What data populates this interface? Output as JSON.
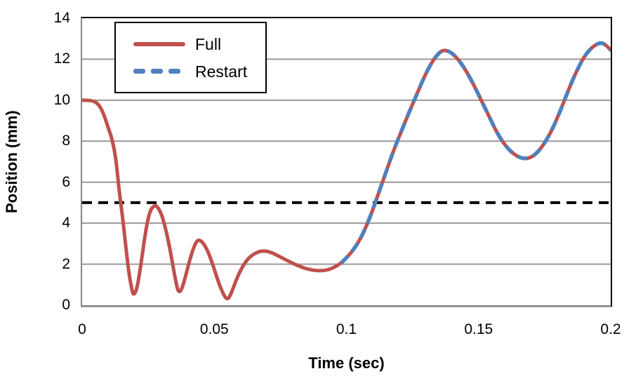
{
  "figure": {
    "background": "#ffffff",
    "plot_border_color": "#000000",
    "axis_line_color": "#848484",
    "gridline_color": "#999999",
    "text_color": "#000000"
  },
  "legend": {
    "position": "top-left-inside",
    "border_color": "#000000",
    "items": [
      {
        "label": "Full",
        "style": "solid"
      },
      {
        "label": "Restart",
        "style": "dashed"
      }
    ]
  },
  "chart_data": {
    "type": "line",
    "title": "",
    "xlabel": "Time (sec)",
    "ylabel": "Position (mm)",
    "xlim": [
      0,
      0.2
    ],
    "ylim": [
      0,
      14
    ],
    "xticks": [
      0,
      0.05,
      0.1,
      0.15,
      0.2
    ],
    "xtick_labels": [
      "0",
      "0.05",
      "0.1",
      "0.15",
      "0.2"
    ],
    "yticks": [
      0,
      2,
      4,
      6,
      8,
      10,
      12,
      14
    ],
    "ytick_labels": [
      "0",
      "2",
      "4",
      "6",
      "8",
      "10",
      "12",
      "14"
    ],
    "grid": true,
    "gridline_y_values": [
      2,
      4,
      6,
      8,
      10,
      12
    ],
    "legend_position": "top-left-inside",
    "reference_line": {
      "y": 5,
      "color": "#000000",
      "style": "dashed",
      "dash": [
        14,
        9
      ],
      "stroke_width": 4
    },
    "series": [
      {
        "name": "Full",
        "color": "#C0504D",
        "style": "solid",
        "stroke_width": 5,
        "points": [
          [
            0,
            10
          ],
          [
            0.002,
            10
          ],
          [
            0.004,
            9.97
          ],
          [
            0.006,
            9.84
          ],
          [
            0.008,
            9.4
          ],
          [
            0.01,
            8.6
          ],
          [
            0.011,
            8.25
          ],
          [
            0.012,
            7.7
          ],
          [
            0.013,
            6.9
          ],
          [
            0.014,
            5.6
          ],
          [
            0.015,
            4.6
          ],
          [
            0.016,
            3.5
          ],
          [
            0.017,
            2.3
          ],
          [
            0.018,
            1.3
          ],
          [
            0.019,
            0.65
          ],
          [
            0.0195,
            0.5
          ],
          [
            0.0205,
            0.7
          ],
          [
            0.0215,
            1.35
          ],
          [
            0.0225,
            2.2
          ],
          [
            0.0235,
            3.15
          ],
          [
            0.0245,
            3.95
          ],
          [
            0.0255,
            4.5
          ],
          [
            0.0265,
            4.78
          ],
          [
            0.028,
            4.88
          ],
          [
            0.0295,
            4.6
          ],
          [
            0.031,
            4.05
          ],
          [
            0.0325,
            3.2
          ],
          [
            0.034,
            2.2
          ],
          [
            0.035,
            1.45
          ],
          [
            0.036,
            0.8
          ],
          [
            0.0368,
            0.62
          ],
          [
            0.0378,
            0.8
          ],
          [
            0.039,
            1.35
          ],
          [
            0.0405,
            2.1
          ],
          [
            0.042,
            2.75
          ],
          [
            0.0435,
            3.18
          ],
          [
            0.045,
            3.15
          ],
          [
            0.0465,
            2.9
          ],
          [
            0.048,
            2.5
          ],
          [
            0.0495,
            1.95
          ],
          [
            0.051,
            1.35
          ],
          [
            0.0525,
            0.8
          ],
          [
            0.054,
            0.4
          ],
          [
            0.055,
            0.28
          ],
          [
            0.056,
            0.45
          ],
          [
            0.0575,
            0.95
          ],
          [
            0.059,
            1.45
          ],
          [
            0.061,
            1.95
          ],
          [
            0.063,
            2.3
          ],
          [
            0.065,
            2.5
          ],
          [
            0.067,
            2.62
          ],
          [
            0.069,
            2.65
          ],
          [
            0.071,
            2.6
          ],
          [
            0.0735,
            2.45
          ],
          [
            0.0765,
            2.25
          ],
          [
            0.0795,
            2.05
          ],
          [
            0.0825,
            1.88
          ],
          [
            0.0855,
            1.75
          ],
          [
            0.0885,
            1.68
          ],
          [
            0.0915,
            1.68
          ],
          [
            0.0945,
            1.78
          ],
          [
            0.098,
            2.05
          ],
          [
            0.1,
            2.3
          ],
          [
            0.103,
            2.75
          ],
          [
            0.106,
            3.4
          ],
          [
            0.109,
            4.3
          ],
          [
            0.112,
            5.4
          ],
          [
            0.115,
            6.5
          ],
          [
            0.118,
            7.6
          ],
          [
            0.121,
            8.55
          ],
          [
            0.124,
            9.5
          ],
          [
            0.127,
            10.4
          ],
          [
            0.13,
            11.3
          ],
          [
            0.133,
            12.0
          ],
          [
            0.136,
            12.45
          ],
          [
            0.139,
            12.4
          ],
          [
            0.142,
            12.05
          ],
          [
            0.145,
            11.5
          ],
          [
            0.148,
            10.8
          ],
          [
            0.151,
            10.0
          ],
          [
            0.154,
            9.2
          ],
          [
            0.157,
            8.4
          ],
          [
            0.16,
            7.8
          ],
          [
            0.163,
            7.4
          ],
          [
            0.166,
            7.17
          ],
          [
            0.169,
            7.15
          ],
          [
            0.172,
            7.4
          ],
          [
            0.175,
            7.9
          ],
          [
            0.178,
            8.6
          ],
          [
            0.181,
            9.5
          ],
          [
            0.184,
            10.5
          ],
          [
            0.187,
            11.4
          ],
          [
            0.19,
            12.15
          ],
          [
            0.193,
            12.6
          ],
          [
            0.196,
            12.82
          ],
          [
            0.198,
            12.72
          ],
          [
            0.2,
            12.45
          ]
        ]
      },
      {
        "name": "Restart",
        "color": "#4F81BD",
        "style": "dashed",
        "stroke_width": 5.5,
        "dash": [
          14,
          9
        ],
        "points": [
          [
            0.098,
            2.05
          ],
          [
            0.1,
            2.3
          ],
          [
            0.103,
            2.75
          ],
          [
            0.106,
            3.4
          ],
          [
            0.109,
            4.3
          ],
          [
            0.112,
            5.4
          ],
          [
            0.115,
            6.5
          ],
          [
            0.118,
            7.6
          ],
          [
            0.121,
            8.55
          ],
          [
            0.124,
            9.5
          ],
          [
            0.127,
            10.4
          ],
          [
            0.13,
            11.3
          ],
          [
            0.133,
            12.0
          ],
          [
            0.136,
            12.45
          ],
          [
            0.139,
            12.4
          ],
          [
            0.142,
            12.05
          ],
          [
            0.145,
            11.5
          ],
          [
            0.148,
            10.8
          ],
          [
            0.151,
            10.0
          ],
          [
            0.154,
            9.2
          ],
          [
            0.157,
            8.4
          ],
          [
            0.16,
            7.8
          ],
          [
            0.163,
            7.4
          ],
          [
            0.166,
            7.17
          ],
          [
            0.169,
            7.15
          ],
          [
            0.172,
            7.4
          ],
          [
            0.175,
            7.9
          ],
          [
            0.178,
            8.6
          ],
          [
            0.181,
            9.5
          ],
          [
            0.184,
            10.5
          ],
          [
            0.187,
            11.4
          ],
          [
            0.19,
            12.15
          ],
          [
            0.193,
            12.6
          ],
          [
            0.196,
            12.82
          ],
          [
            0.198,
            12.72
          ],
          [
            0.2,
            12.45
          ]
        ]
      }
    ]
  }
}
